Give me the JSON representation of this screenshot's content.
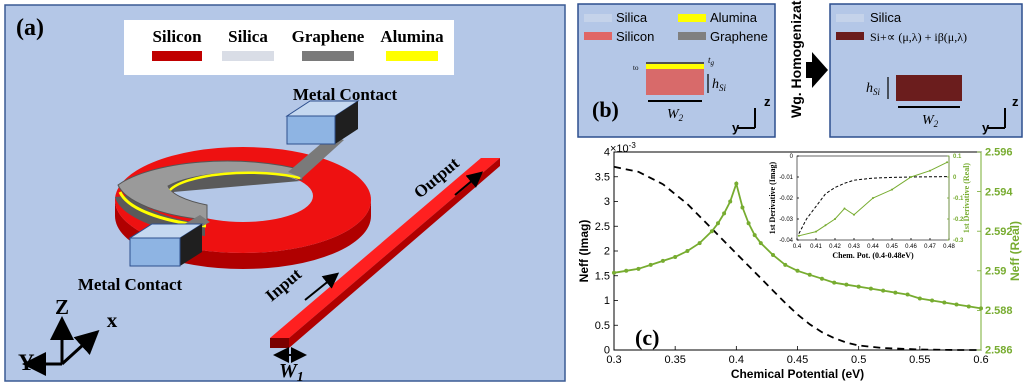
{
  "panel_a": {
    "tag": "(a)",
    "legend": [
      {
        "label": "Silicon",
        "color": "#c00000"
      },
      {
        "label": "Silica",
        "color": "#d9dde6"
      },
      {
        "label": "Graphene",
        "color": "#7a7a7a"
      },
      {
        "label": "Alumina",
        "color": "#ffff00"
      }
    ],
    "metal_contact_top": "Metal Contact",
    "metal_contact_bottom": "Metal Contact",
    "output_label": "Output",
    "input_label": "Input",
    "width_label": "W",
    "width_sub": "1",
    "axis_z": "Z",
    "axis_x": "x",
    "axis_y": "Y",
    "colors": {
      "background": "#b4c7e7",
      "silicon": "#e60000",
      "graphene": "#909090",
      "alumina": "#ffff00",
      "contact": "#8eb4e3"
    }
  },
  "panel_b": {
    "tag": "(b)",
    "legend": [
      {
        "label": "Silica",
        "color": "#c5d3ea"
      },
      {
        "label": "Alumina",
        "color": "#ffff00"
      },
      {
        "label": "Silicon",
        "color": "#e06666"
      },
      {
        "label": "Graphene",
        "color": "#808080"
      }
    ],
    "t_g": "t",
    "t_g_sub": "g",
    "t_o": "to",
    "h_si": "h",
    "h_si_sub": "Si",
    "w2": "W",
    "w2_sub": "2",
    "axis_z": "z",
    "axis_y": "y",
    "homogenization": "Wg. Homogenization",
    "right_legend_silica": "Silica",
    "right_legend_formula": "Si+∝ (μ,λ) + iβ(μ,λ)",
    "right_color": "#6b1d1d"
  },
  "panel_c": {
    "tag": "(c)",
    "exponent": "×10",
    "exponent_power": "-3",
    "inset_left_label": "1st Derivative (Imag)",
    "inset_right_label": "1st Derivative (Real)",
    "inset_xlabel": "Chem. Pot. (0.4-0.48eV)"
  },
  "chart_data": [
    {
      "type": "line",
      "xlabel": "Chemical  Potential (eV)",
      "ylabel": "Neff (Imag)",
      "y2label": "Neff (Real)",
      "xlim": [
        0.3,
        0.6
      ],
      "ylim": [
        0,
        4
      ],
      "y2lim": [
        2.586,
        2.596
      ],
      "xticks": [
        "0.3",
        "0.35",
        "0.4",
        "0.45",
        "0.5",
        "0.55",
        "0.6"
      ],
      "yticks": [
        "0",
        "0.5",
        "1",
        "1.5",
        "2",
        "2.5",
        "3",
        "3.5",
        "4"
      ],
      "y2ticks": [
        "2.586",
        "2.588",
        "2.59",
        "2.592",
        "2.594",
        "2.596"
      ],
      "series": [
        {
          "axis": "left",
          "style": "dashed",
          "color": "#000000",
          "x": [
            0.3,
            0.32,
            0.34,
            0.36,
            0.38,
            0.39,
            0.4,
            0.41,
            0.42,
            0.43,
            0.44,
            0.45,
            0.46,
            0.47,
            0.48,
            0.49,
            0.5,
            0.52,
            0.55,
            0.58,
            0.6
          ],
          "values": [
            3.7,
            3.6,
            3.35,
            2.95,
            2.45,
            2.2,
            1.95,
            1.7,
            1.45,
            1.2,
            0.95,
            0.72,
            0.52,
            0.36,
            0.24,
            0.15,
            0.09,
            0.04,
            0.01,
            0.0,
            0.0
          ]
        },
        {
          "axis": "right",
          "style": "solid-markers",
          "color": "#77ac30",
          "x": [
            0.3,
            0.31,
            0.32,
            0.33,
            0.34,
            0.35,
            0.36,
            0.37,
            0.38,
            0.385,
            0.39,
            0.395,
            0.4,
            0.405,
            0.41,
            0.415,
            0.42,
            0.43,
            0.44,
            0.45,
            0.46,
            0.47,
            0.48,
            0.49,
            0.5,
            0.51,
            0.52,
            0.53,
            0.54,
            0.55,
            0.56,
            0.57,
            0.58,
            0.59,
            0.6
          ],
          "values": [
            2.5899,
            2.59,
            2.5901,
            2.5903,
            2.5905,
            2.5907,
            2.591,
            2.5914,
            2.592,
            2.5924,
            2.5929,
            2.5935,
            2.5944,
            2.5932,
            2.5924,
            2.5918,
            2.5914,
            2.5908,
            2.5903,
            2.59,
            2.5898,
            2.5896,
            2.5894,
            2.5893,
            2.5892,
            2.5891,
            2.589,
            2.5889,
            2.5888,
            2.5886,
            2.5885,
            2.5884,
            2.5883,
            2.5882,
            2.5881
          ]
        }
      ]
    },
    {
      "type": "line",
      "xlabel": "Chem. Pot. (0.4-0.48eV)",
      "ylabel": "1st Derivative (Imag)",
      "y2label": "1st Derivative (Real)",
      "xlim": [
        0.4,
        0.48
      ],
      "ylim": [
        -0.04,
        0
      ],
      "y2lim": [
        -0.3,
        0.1
      ],
      "xticks": [
        "0.4",
        "0.41",
        "0.42",
        "0.43",
        "0.44",
        "0.45",
        "0.46",
        "0.47",
        "0.48"
      ],
      "yticks": [
        "-0.04",
        "-0.03",
        "-0.02",
        "-0.01",
        "0"
      ],
      "y2ticks": [
        "-0.3",
        "-0.2",
        "-0.1",
        "0",
        "0.1"
      ],
      "series": [
        {
          "axis": "left",
          "style": "dashed",
          "color": "#000000",
          "x": [
            0.401,
            0.405,
            0.41,
            0.415,
            0.42,
            0.425,
            0.43,
            0.44,
            0.45,
            0.46,
            0.47,
            0.479
          ],
          "values": [
            -0.037,
            -0.03,
            -0.024,
            -0.018,
            -0.015,
            -0.013,
            -0.0115,
            -0.0105,
            -0.0102,
            -0.01,
            -0.0099,
            -0.0098
          ]
        },
        {
          "axis": "right",
          "style": "solid-markers",
          "color": "#77ac30",
          "x": [
            0.401,
            0.41,
            0.415,
            0.42,
            0.425,
            0.43,
            0.44,
            0.45,
            0.46,
            0.47,
            0.479
          ],
          "values": [
            -0.28,
            -0.26,
            -0.23,
            -0.2,
            -0.15,
            -0.18,
            -0.1,
            -0.06,
            0.0,
            0.03,
            0.07
          ]
        }
      ]
    }
  ]
}
